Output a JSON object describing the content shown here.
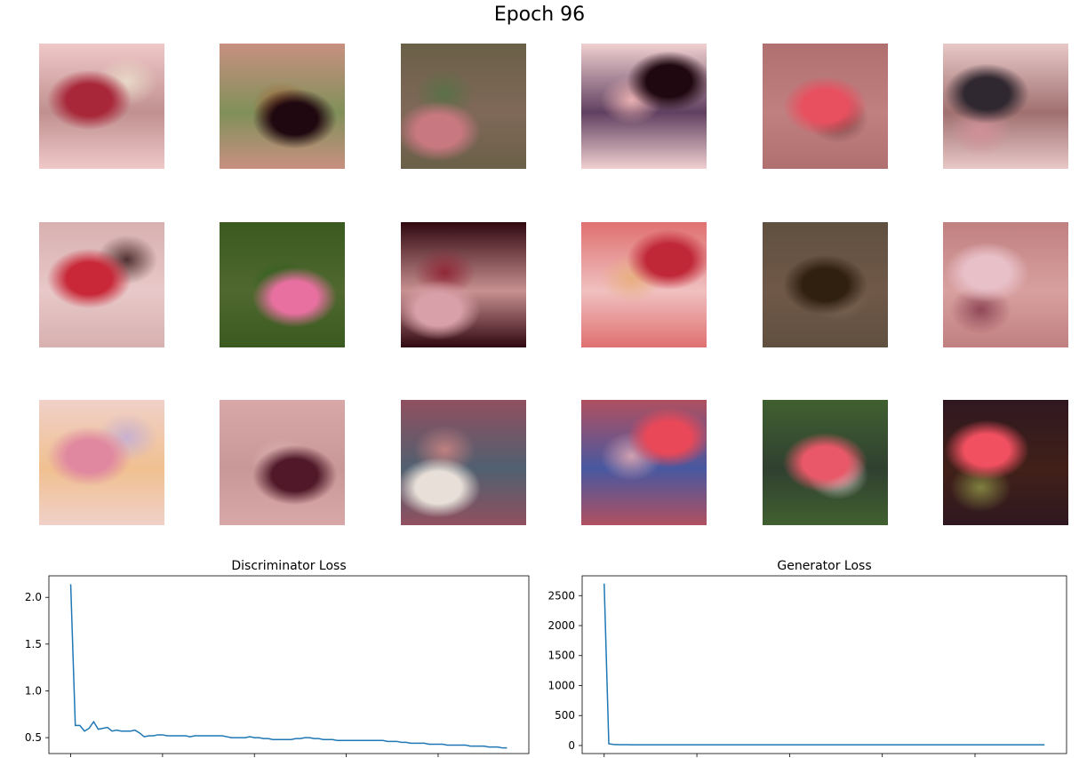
{
  "figure": {
    "title": "Epoch 96"
  },
  "samples": [
    {
      "colors": [
        "#f0c8c8",
        "#a8283a",
        "#e8d8c8",
        "#c09090"
      ]
    },
    {
      "colors": [
        "#c89080",
        "#200810",
        "#a06030",
        "#80905a"
      ]
    },
    {
      "colors": [
        "#6a6048",
        "#c87880",
        "#5a7048",
        "#806858"
      ]
    },
    {
      "colors": [
        "#f0d0d0",
        "#200810",
        "#e8b0b0",
        "#604060"
      ]
    },
    {
      "colors": [
        "#b07070",
        "#e85060",
        "#703838",
        "#c08080"
      ]
    },
    {
      "colors": [
        "#e8c8c8",
        "#302830",
        "#d09098",
        "#a07070"
      ]
    },
    {
      "colors": [
        "#d8b0b0",
        "#c82838",
        "#503030",
        "#e8c8c8"
      ]
    },
    {
      "colors": [
        "#3a5a20",
        "#e870a0",
        "#286018",
        "#506830"
      ]
    },
    {
      "colors": [
        "#300810",
        "#d8a0a8",
        "#902838",
        "#c89090"
      ]
    },
    {
      "colors": [
        "#e07070",
        "#c02838",
        "#e8b080",
        "#f0c0c0"
      ]
    },
    {
      "colors": [
        "#605040",
        "#302010",
        "#806858",
        "#705848"
      ]
    },
    {
      "colors": [
        "#c08080",
        "#e8c0c8",
        "#904858",
        "#d8a0a0"
      ]
    },
    {
      "colors": [
        "#f0d0c8",
        "#e088a0",
        "#c8b0d0",
        "#f0c090"
      ]
    },
    {
      "colors": [
        "#d8a8a8",
        "#501828",
        "#e0b8b8",
        "#c89898"
      ]
    },
    {
      "colors": [
        "#905060",
        "#e8e0d8",
        "#c08080",
        "#506070"
      ]
    },
    {
      "colors": [
        "#b05060",
        "#e84858",
        "#d0a0b0",
        "#4858a0"
      ]
    },
    {
      "colors": [
        "#406030",
        "#e85868",
        "#e8e0e0",
        "#304030"
      ]
    },
    {
      "colors": [
        "#301820",
        "#f05060",
        "#808040",
        "#402018"
      ]
    }
  ],
  "chart_data": [
    {
      "type": "line",
      "title": "Discriminator Loss",
      "xlabel": "",
      "ylabel": "",
      "xlim": [
        -4.75,
        99.75
      ],
      "ylim": [
        0.33,
        2.23
      ],
      "xticks": [
        0,
        20,
        40,
        60,
        80
      ],
      "yticks": [
        0.5,
        1.0,
        1.5,
        2.0
      ],
      "ytick_labels": [
        "0.5",
        "1.0",
        "1.5",
        "2.0"
      ],
      "color": "#1f77b4",
      "x": [
        0,
        1,
        2,
        3,
        4,
        5,
        6,
        7,
        8,
        9,
        10,
        11,
        12,
        13,
        14,
        15,
        16,
        17,
        18,
        19,
        20,
        21,
        22,
        23,
        24,
        25,
        26,
        27,
        28,
        29,
        30,
        31,
        32,
        33,
        34,
        35,
        36,
        37,
        38,
        39,
        40,
        41,
        42,
        43,
        44,
        45,
        46,
        47,
        48,
        49,
        50,
        51,
        52,
        53,
        54,
        55,
        56,
        57,
        58,
        59,
        60,
        61,
        62,
        63,
        64,
        65,
        66,
        67,
        68,
        69,
        70,
        71,
        72,
        73,
        74,
        75,
        76,
        77,
        78,
        79,
        80,
        81,
        82,
        83,
        84,
        85,
        86,
        87,
        88,
        89,
        90,
        91,
        92,
        93,
        94,
        95
      ],
      "values": [
        2.14,
        0.63,
        0.63,
        0.57,
        0.6,
        0.67,
        0.59,
        0.6,
        0.61,
        0.57,
        0.58,
        0.57,
        0.57,
        0.57,
        0.58,
        0.55,
        0.51,
        0.52,
        0.52,
        0.53,
        0.53,
        0.52,
        0.52,
        0.52,
        0.52,
        0.52,
        0.51,
        0.52,
        0.52,
        0.52,
        0.52,
        0.52,
        0.52,
        0.52,
        0.51,
        0.5,
        0.5,
        0.5,
        0.5,
        0.51,
        0.5,
        0.5,
        0.49,
        0.49,
        0.48,
        0.48,
        0.48,
        0.48,
        0.48,
        0.49,
        0.49,
        0.5,
        0.5,
        0.49,
        0.49,
        0.48,
        0.48,
        0.48,
        0.47,
        0.47,
        0.47,
        0.47,
        0.47,
        0.47,
        0.47,
        0.47,
        0.47,
        0.47,
        0.47,
        0.46,
        0.46,
        0.46,
        0.45,
        0.45,
        0.44,
        0.44,
        0.44,
        0.44,
        0.43,
        0.43,
        0.43,
        0.43,
        0.42,
        0.42,
        0.42,
        0.42,
        0.42,
        0.41,
        0.41,
        0.41,
        0.41,
        0.4,
        0.4,
        0.4,
        0.39,
        0.39
      ]
    },
    {
      "type": "line",
      "title": "Generator Loss",
      "xlabel": "",
      "ylabel": "",
      "xlim": [
        -4.75,
        99.75
      ],
      "ylim": [
        -134,
        2830
      ],
      "xticks": [
        0,
        20,
        40,
        60,
        80
      ],
      "yticks": [
        0,
        500,
        1000,
        1500,
        2000,
        2500
      ],
      "ytick_labels": [
        "0",
        "500",
        "1000",
        "1500",
        "2000",
        "2500"
      ],
      "color": "#1f77b4",
      "x": [
        0,
        1,
        2,
        3,
        4,
        5,
        6,
        7,
        8,
        9,
        10,
        11,
        12,
        13,
        14,
        15,
        16,
        17,
        18,
        19,
        20,
        21,
        22,
        23,
        24,
        25,
        26,
        27,
        28,
        29,
        30,
        31,
        32,
        33,
        34,
        35,
        36,
        37,
        38,
        39,
        40,
        41,
        42,
        43,
        44,
        45,
        46,
        47,
        48,
        49,
        50,
        51,
        52,
        53,
        54,
        55,
        56,
        57,
        58,
        59,
        60,
        61,
        62,
        63,
        64,
        65,
        66,
        67,
        68,
        69,
        70,
        71,
        72,
        73,
        74,
        75,
        76,
        77,
        78,
        79,
        80,
        81,
        82,
        83,
        84,
        85,
        86,
        87,
        88,
        89,
        90,
        91,
        92,
        93,
        94,
        95
      ],
      "values": [
        2700,
        30,
        18,
        15,
        14,
        14,
        13,
        13,
        13,
        12,
        12,
        12,
        12,
        12,
        12,
        12,
        12,
        12,
        12,
        12,
        12,
        12,
        12,
        12,
        12,
        12,
        12,
        12,
        12,
        12,
        12,
        12,
        12,
        12,
        12,
        12,
        12,
        12,
        12,
        12,
        12,
        12,
        12,
        12,
        12,
        12,
        12,
        12,
        12,
        12,
        12,
        12,
        12,
        12,
        12,
        12,
        12,
        12,
        12,
        12,
        12,
        12,
        12,
        12,
        12,
        12,
        12,
        12,
        12,
        12,
        12,
        12,
        12,
        12,
        12,
        12,
        12,
        12,
        12,
        12,
        12,
        12,
        12,
        12,
        12,
        12,
        12,
        12,
        12,
        12,
        12,
        12,
        12,
        12,
        12,
        12
      ]
    }
  ]
}
